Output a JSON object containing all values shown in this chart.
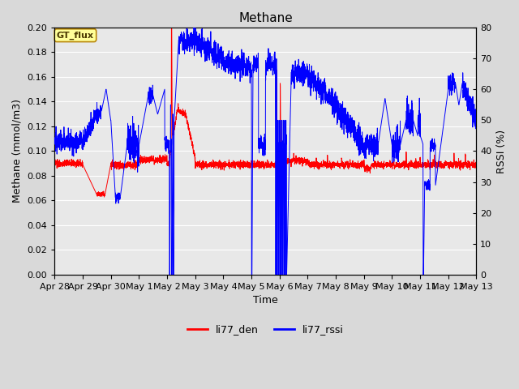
{
  "title": "Methane",
  "xlabel": "Time",
  "ylabel_left": "Methane (mmol/m3)",
  "ylabel_right": "RSSI (%)",
  "ylim_left": [
    0.0,
    0.2
  ],
  "ylim_right": [
    0,
    80
  ],
  "yticks_left": [
    0.0,
    0.02,
    0.04,
    0.06,
    0.08,
    0.1,
    0.12,
    0.14,
    0.16,
    0.18,
    0.2
  ],
  "yticks_right": [
    0,
    10,
    20,
    30,
    40,
    50,
    60,
    70,
    80
  ],
  "xtick_labels": [
    "Apr 28",
    "Apr 29",
    "Apr 30",
    "May 1",
    "May 2",
    "May 3",
    "May 4",
    "May 5",
    "May 6",
    "May 7",
    "May 8",
    "May 9",
    "May 10",
    "May 11",
    "May 12",
    "May 13"
  ],
  "legend_labels": [
    "li77_den",
    "li77_rssi"
  ],
  "legend_colors": [
    "#ff0000",
    "#0000ff"
  ],
  "gt_flux_label": "GT_flux",
  "gt_flux_bg": "#ffff99",
  "gt_flux_border": "#b8860b",
  "bg_color": "#d9d9d9",
  "plot_bg_color": "#e8e8e8",
  "line_color_den": "#ff0000",
  "line_color_rssi": "#0000ff",
  "grid_color": "#ffffff",
  "title_fontsize": 11,
  "label_fontsize": 9,
  "tick_fontsize": 8
}
